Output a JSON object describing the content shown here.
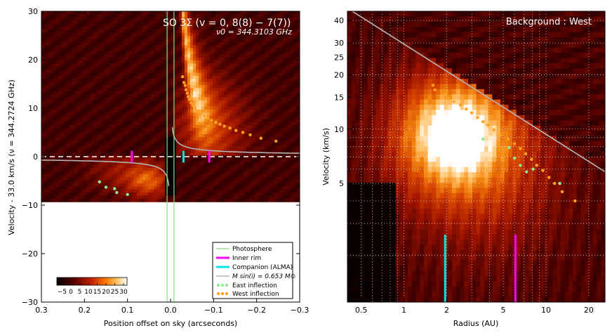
{
  "chart_data": [
    {
      "type": "scatter",
      "panel": "left",
      "title": "SO 3Σ (v = 0, 8(8) − 7(7))",
      "subtitle": "ν0 = 344.3103 GHz",
      "xlabel": "Position offset on sky (arcseconds)",
      "ylabel": "Velocity - 33.0 km/s (ν = 344.2724 GHz)",
      "xlim": [
        0.3,
        -0.3
      ],
      "ylim": [
        -30,
        30
      ],
      "x_ticks": [
        0.3,
        0.2,
        0.1,
        0.0,
        -0.1,
        -0.2,
        -0.3
      ],
      "x_tick_labels": [
        "0.3",
        "0.2",
        "0.1",
        "0.0",
        "−0.1",
        "−0.2",
        "−0.3"
      ],
      "y_ticks": [
        -30,
        -20,
        -10,
        0,
        10,
        20,
        30
      ],
      "y_tick_labels": [
        "−30",
        "−20",
        "−10",
        "0",
        "10",
        "20",
        "30"
      ],
      "image_bottom_velocity": -9.3,
      "colorbar": {
        "ticks": [
          "−5",
          "0",
          "5",
          "10",
          "15",
          "20",
          "25",
          "30"
        ],
        "range": [
          -8,
          32
        ],
        "location": "lower-left"
      },
      "photosphere_x": [
        0.008,
        -0.008
      ],
      "inner_rim_x": [
        0.09,
        -0.09
      ],
      "companion_alma_x": -0.03,
      "mass_curve": {
        "label": "M sin(i) = 0.653 M⊙",
        "k": 1.215
      },
      "east_inflection": {
        "x": [
          0.1,
          0.125,
          0.13,
          0.15,
          0.165
        ],
        "y": [
          -7.8,
          -7.4,
          -6.6,
          -6.3,
          -5.2
        ]
      },
      "west_inflection": {
        "x": [
          -0.028,
          -0.031,
          -0.034,
          -0.036,
          -0.039,
          -0.041,
          -0.044,
          -0.048,
          -0.052,
          -0.057,
          -0.063,
          -0.07,
          -0.078,
          -0.087,
          -0.095,
          -0.105,
          -0.115,
          -0.125,
          -0.138,
          -0.152,
          -0.168,
          -0.185,
          -0.21,
          -0.245
        ],
        "y": [
          16.5,
          15.3,
          14.7,
          13.8,
          13.1,
          12.4,
          11.8,
          11.1,
          10.6,
          10.0,
          9.4,
          8.9,
          8.4,
          7.9,
          7.5,
          7.1,
          6.7,
          6.3,
          5.9,
          5.4,
          5.0,
          4.5,
          3.8,
          3.2
        ]
      },
      "legend": [
        "Photosphere",
        "Inner rim",
        "Companion (ALMA)",
        "M sin(i) = 0.653 M⊙",
        "East inflection",
        "West inflection"
      ]
    },
    {
      "type": "scatter",
      "panel": "right",
      "title": "Background : West",
      "xlabel": "Radius (AU)",
      "ylabel": "Velocity (km/s)",
      "xscale": "log",
      "yscale": "log",
      "xlim": [
        0.4,
        26
      ],
      "ylim": [
        1.1,
        45
      ],
      "x_ticks": [
        0.5,
        1,
        2,
        5,
        10,
        20
      ],
      "x_tick_labels": [
        "0.5",
        "1",
        "2",
        "5",
        "10",
        "20"
      ],
      "y_ticks": [
        5,
        10,
        15,
        20,
        25,
        30,
        40
      ],
      "y_tick_labels": [
        "5",
        "10",
        "15",
        "20",
        "25",
        "30",
        "40"
      ],
      "keplerian_line": {
        "k": 29.6,
        "slope": -0.5
      },
      "companion_radius": 1.95,
      "inner_rim_radius": 6.1,
      "east_inflection": {
        "x": [
          3.6,
          5.5,
          6.0,
          6.6,
          7.3,
          8.1,
          12.5
        ],
        "y": [
          8.8,
          7.9,
          6.9,
          6.3,
          5.8,
          6.0,
          5.0
        ]
      },
      "west_inflection": {
        "x": [
          1.6,
          1.65,
          1.95,
          2.05,
          2.25,
          2.5,
          2.75,
          3.0,
          3.3,
          3.6,
          3.9,
          4.3,
          4.8,
          5.4,
          6.0,
          6.6,
          7.2,
          7.9,
          8.6,
          9.5,
          10.5,
          11.5,
          13.0,
          16.0
        ],
        "y": [
          17.5,
          16.5,
          15.5,
          14.8,
          14.2,
          13.6,
          12.9,
          12.3,
          11.6,
          11.0,
          10.5,
          9.9,
          9.3,
          8.8,
          8.3,
          7.8,
          7.3,
          6.8,
          6.3,
          5.9,
          5.4,
          5.0,
          4.5,
          4.0
        ]
      }
    }
  ]
}
